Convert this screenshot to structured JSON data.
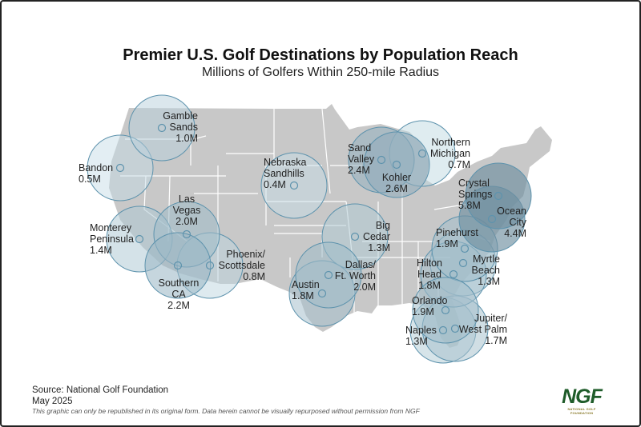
{
  "header": {
    "title": "Premier U.S. Golf Destinations by Population Reach",
    "subtitle": "Millions of Golfers Within 250-mile Radius"
  },
  "map": {
    "land_color": "#c8c8c8",
    "border_color": "#ffffff",
    "circle_stroke": "#5e93ad",
    "circle_fill_light": "#cfe6ef",
    "circle_fill_dark": "#6f8fa0",
    "radius_miles": 250,
    "destinations": [
      {
        "id": "gamble",
        "lines": [
          "Gamble",
          "Sands"
        ],
        "value": "1.0M",
        "millions": 1.0
      },
      {
        "id": "bandon",
        "lines": [
          "Bandon"
        ],
        "value": "0.5M",
        "millions": 0.5
      },
      {
        "id": "nebraska",
        "lines": [
          "Nebraska",
          "Sandhills"
        ],
        "value": "0.4M",
        "millions": 0.4
      },
      {
        "id": "sandvalley",
        "lines": [
          "Sand",
          "Valley"
        ],
        "value": "2.4M",
        "millions": 2.4
      },
      {
        "id": "kohler",
        "lines": [
          "Kohler"
        ],
        "value": "2.6M",
        "millions": 2.6
      },
      {
        "id": "nmichigan",
        "lines": [
          "Northern",
          "Michigan"
        ],
        "value": "0.7M",
        "millions": 0.7
      },
      {
        "id": "crystal",
        "lines": [
          "Crystal",
          "Springs"
        ],
        "value": "5.8M",
        "millions": 5.8
      },
      {
        "id": "ocean",
        "lines": [
          "Ocean",
          "City"
        ],
        "value": "4.4M",
        "millions": 4.4
      },
      {
        "id": "vegas",
        "lines": [
          "Las",
          "Vegas"
        ],
        "value": "2.0M",
        "millions": 2.0
      },
      {
        "id": "monterey",
        "lines": [
          "Monterey",
          "Peninsula"
        ],
        "value": "1.4M",
        "millions": 1.4
      },
      {
        "id": "socal",
        "lines": [
          "Southern",
          "CA"
        ],
        "value": "2.2M",
        "millions": 2.2
      },
      {
        "id": "phoenix",
        "lines": [
          "Phoenix/",
          "Scottsdale"
        ],
        "value": "0.8M",
        "millions": 0.8
      },
      {
        "id": "bigcedar",
        "lines": [
          "Big",
          "Cedar"
        ],
        "value": "1.3M",
        "millions": 1.3
      },
      {
        "id": "dallas",
        "lines": [
          "Dallas/",
          "Ft. Worth"
        ],
        "value": "2.0M",
        "millions": 2.0
      },
      {
        "id": "austin",
        "lines": [
          "Austin"
        ],
        "value": "1.8M",
        "millions": 1.8
      },
      {
        "id": "pinehurst",
        "lines": [
          "Pinehurst"
        ],
        "value": "1.9M",
        "millions": 1.9
      },
      {
        "id": "myrtle",
        "lines": [
          "Myrtle",
          "Beach"
        ],
        "value": "1.3M",
        "millions": 1.3
      },
      {
        "id": "hilton",
        "lines": [
          "Hilton",
          "Head"
        ],
        "value": "1.8M",
        "millions": 1.8
      },
      {
        "id": "orlando",
        "lines": [
          "Orlando"
        ],
        "value": "1.9M",
        "millions": 1.9
      },
      {
        "id": "naples",
        "lines": [
          "Naples"
        ],
        "value": "1.3M",
        "millions": 1.3
      },
      {
        "id": "jupiter",
        "lines": [
          "Jupiter/",
          "West Palm"
        ],
        "value": "1.7M",
        "millions": 1.7
      }
    ]
  },
  "footer": {
    "source": "Source: National Golf Foundation",
    "date": "May 2025",
    "note": "This graphic can only be republished in its original form. Data herein cannot be visually repurposed without permission from NGF"
  },
  "logo": {
    "text": "NGF",
    "caption": "NATIONAL GOLF FOUNDATION",
    "color": "#1f5c2a"
  }
}
